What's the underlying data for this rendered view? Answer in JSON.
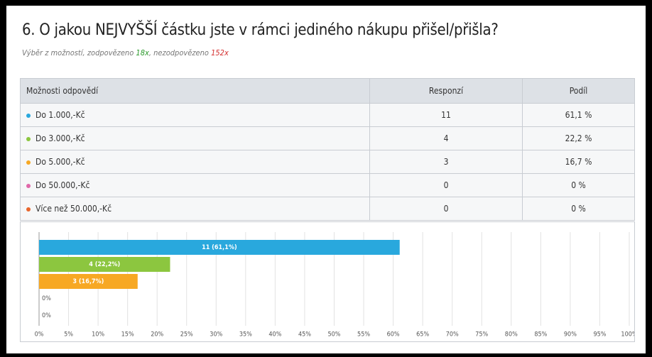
{
  "header": {
    "title": "6. O jakou NEJVYŠŠÍ částku jste v rámci jediného nákupu přišel/přišla?",
    "subtitle_start": "Výběr z možností, zodpovězeno ",
    "answered": "18x",
    "subtitle_mid": ", nezodpovězeno ",
    "unanswered": "152x"
  },
  "table": {
    "columns": [
      "Možnosti odpovědí",
      "Responzí",
      "Podíl"
    ],
    "rows": [
      [
        "Do 1.000,-Kč",
        "11",
        "61,1 %"
      ],
      [
        "Do 3.000,-Kč",
        "4",
        "22,2 %"
      ],
      [
        "Do 5.000,-Kč",
        "3",
        "16,7 %"
      ],
      [
        "Do 50.000,-Kč",
        "0",
        "0 %"
      ],
      [
        "Více než 50.000,-Kč",
        "0",
        "0 %"
      ]
    ]
  },
  "chart_data": {
    "type": "bar",
    "orientation": "horizontal",
    "values": [
      61.1,
      22.2,
      16.7,
      0,
      0
    ],
    "value_labels": [
      "11 (61,1%)",
      "4 (22,2%)",
      "3 (16,7%)",
      "0%",
      "0%"
    ],
    "colors": [
      "#29a8dd",
      "#8cc63f",
      "#f7a823",
      "#e068a9",
      "#e8662c"
    ],
    "xlim": [
      0,
      100
    ],
    "xticks": [
      {
        "value": 0,
        "label": "0%"
      },
      {
        "value": 5,
        "label": "5%"
      },
      {
        "value": 10,
        "label": "10%"
      },
      {
        "value": 15,
        "label": "15%"
      },
      {
        "value": 20,
        "label": "20%"
      },
      {
        "value": 25,
        "label": "25%"
      },
      {
        "value": 30,
        "label": "30%"
      },
      {
        "value": 35,
        "label": "35%"
      },
      {
        "value": 40,
        "label": "40%"
      },
      {
        "value": 45,
        "label": "45%"
      },
      {
        "value": 50,
        "label": "50%"
      },
      {
        "value": 55,
        "label": "55%"
      },
      {
        "value": 60,
        "label": "60%"
      },
      {
        "value": 65,
        "label": "65%"
      },
      {
        "value": 70,
        "label": "70%"
      },
      {
        "value": 75,
        "label": "75%"
      },
      {
        "value": 80,
        "label": "80%"
      },
      {
        "value": 85,
        "label": "85%"
      },
      {
        "value": 90,
        "label": "90%"
      },
      {
        "value": 95,
        "label": "95%"
      },
      {
        "value": 100,
        "label": "100%"
      }
    ],
    "grid": true
  }
}
